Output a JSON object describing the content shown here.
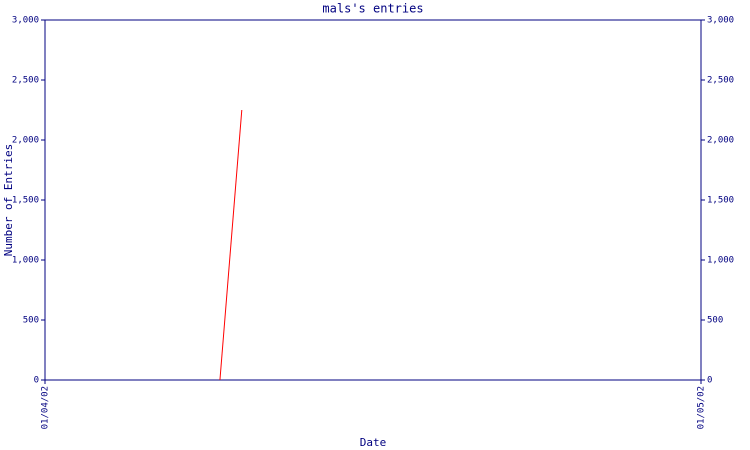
{
  "chart_data": {
    "type": "line",
    "title": "mals's entries",
    "x_label": "Date",
    "y_label": "Number of Entries",
    "x": [
      "09/04/02",
      "10/04/02"
    ],
    "series": [
      {
        "name": "entries",
        "color": "#ff0000",
        "values": [
          0,
          2250
        ]
      }
    ],
    "xlim": [
      "01/04/02",
      "01/05/02"
    ],
    "xticks": [
      "01/04/02",
      "01/05/02"
    ],
    "ylim": [
      0,
      3000
    ],
    "yticks": [
      0,
      500,
      {
        "value": 1000,
        "label": "1,000"
      },
      {
        "value": 1500,
        "label": "1,500"
      },
      {
        "value": 2000,
        "label": "2,000"
      },
      {
        "value": 2500,
        "label": "2,500"
      },
      {
        "value": 3000,
        "label": "3,000"
      }
    ],
    "grid": false
  }
}
